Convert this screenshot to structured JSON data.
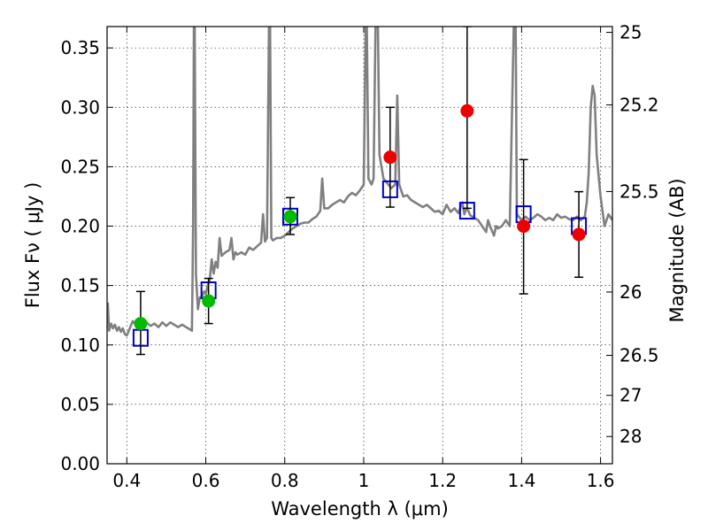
{
  "chart_data": {
    "type": "scatter",
    "title": "",
    "xlabel": "Wavelength  λ (μm)",
    "ylabel": "Flux  Fν  ( μJy )",
    "y2label": "Magnitude (AB)",
    "xlim": [
      0.35,
      1.63
    ],
    "ylim": [
      0.0,
      0.368
    ],
    "grid": true,
    "x_ticks": [
      {
        "v": 0.4,
        "label": "0.4"
      },
      {
        "v": 0.6,
        "label": "0.6"
      },
      {
        "v": 0.8,
        "label": "0.8"
      },
      {
        "v": 1.0,
        "label": "1"
      },
      {
        "v": 1.2,
        "label": "1.2"
      },
      {
        "v": 1.4,
        "label": "1.4"
      },
      {
        "v": 1.6,
        "label": "1.6"
      }
    ],
    "y_ticks": [
      {
        "v": 0.0,
        "label": "0.00"
      },
      {
        "v": 0.05,
        "label": "0.05"
      },
      {
        "v": 0.1,
        "label": "0.10"
      },
      {
        "v": 0.15,
        "label": "0.15"
      },
      {
        "v": 0.2,
        "label": "0.20"
      },
      {
        "v": 0.25,
        "label": "0.25"
      },
      {
        "v": 0.3,
        "label": "0.30"
      },
      {
        "v": 0.35,
        "label": "0.35"
      }
    ],
    "y2_ticks": [
      {
        "v": 25,
        "label": "25"
      },
      {
        "v": 25.2,
        "label": "25.2"
      },
      {
        "v": 25.5,
        "label": "25.5"
      },
      {
        "v": 26,
        "label": "26"
      },
      {
        "v": 26.5,
        "label": "26.5"
      },
      {
        "v": 27,
        "label": "27"
      },
      {
        "v": 28,
        "label": "28"
      }
    ],
    "colors": {
      "model": "#808080",
      "observed_green": "#00bb00",
      "observed_red": "#ee0000",
      "synthetic": "#0000cc",
      "errorbar": "#000000"
    },
    "series": [
      {
        "type": "line",
        "color": "#808080",
        "points": [
          [
            0.35,
            0.12
          ],
          [
            0.352,
            0.135
          ],
          [
            0.355,
            0.112
          ],
          [
            0.36,
            0.118
          ],
          [
            0.365,
            0.114
          ],
          [
            0.37,
            0.117
          ],
          [
            0.375,
            0.112
          ],
          [
            0.38,
            0.115
          ],
          [
            0.385,
            0.111
          ],
          [
            0.39,
            0.114
          ],
          [
            0.395,
            0.109
          ],
          [
            0.4,
            0.108
          ],
          [
            0.405,
            0.112
          ],
          [
            0.41,
            0.116
          ],
          [
            0.415,
            0.12
          ],
          [
            0.42,
            0.118
          ],
          [
            0.43,
            0.121
          ],
          [
            0.44,
            0.118
          ],
          [
            0.45,
            0.119
          ],
          [
            0.46,
            0.116
          ],
          [
            0.47,
            0.118
          ],
          [
            0.48,
            0.115
          ],
          [
            0.49,
            0.119
          ],
          [
            0.5,
            0.116
          ],
          [
            0.51,
            0.119
          ],
          [
            0.52,
            0.117
          ],
          [
            0.53,
            0.115
          ],
          [
            0.54,
            0.117
          ],
          [
            0.55,
            0.115
          ],
          [
            0.56,
            0.113
          ],
          [
            0.565,
            0.112
          ],
          [
            0.568,
            0.2
          ],
          [
            0.57,
            0.368
          ],
          [
            0.572,
            0.368
          ],
          [
            0.575,
            0.16
          ],
          [
            0.58,
            0.13
          ],
          [
            0.585,
            0.14
          ],
          [
            0.59,
            0.14
          ],
          [
            0.595,
            0.145
          ],
          [
            0.6,
            0.143
          ],
          [
            0.605,
            0.15
          ],
          [
            0.61,
            0.155
          ],
          [
            0.615,
            0.172
          ],
          [
            0.62,
            0.16
          ],
          [
            0.625,
            0.17
          ],
          [
            0.63,
            0.165
          ],
          [
            0.635,
            0.19
          ],
          [
            0.64,
            0.175
          ],
          [
            0.65,
            0.178
          ],
          [
            0.66,
            0.18
          ],
          [
            0.665,
            0.19
          ],
          [
            0.67,
            0.172
          ],
          [
            0.675,
            0.178
          ],
          [
            0.68,
            0.176
          ],
          [
            0.69,
            0.178
          ],
          [
            0.7,
            0.176
          ],
          [
            0.71,
            0.182
          ],
          [
            0.72,
            0.18
          ],
          [
            0.73,
            0.183
          ],
          [
            0.74,
            0.186
          ],
          [
            0.745,
            0.21
          ],
          [
            0.75,
            0.187
          ],
          [
            0.755,
            0.19
          ],
          [
            0.76,
            0.368
          ],
          [
            0.763,
            0.368
          ],
          [
            0.766,
            0.19
          ],
          [
            0.77,
            0.188
          ],
          [
            0.78,
            0.19
          ],
          [
            0.79,
            0.19
          ],
          [
            0.8,
            0.192
          ],
          [
            0.81,
            0.195
          ],
          [
            0.82,
            0.198
          ],
          [
            0.83,
            0.2
          ],
          [
            0.84,
            0.202
          ],
          [
            0.85,
            0.203
          ],
          [
            0.86,
            0.203
          ],
          [
            0.87,
            0.206
          ],
          [
            0.88,
            0.208
          ],
          [
            0.89,
            0.213
          ],
          [
            0.895,
            0.24
          ],
          [
            0.9,
            0.215
          ],
          [
            0.91,
            0.215
          ],
          [
            0.92,
            0.218
          ],
          [
            0.93,
            0.22
          ],
          [
            0.94,
            0.222
          ],
          [
            0.95,
            0.22
          ],
          [
            0.96,
            0.225
          ],
          [
            0.97,
            0.228
          ],
          [
            0.98,
            0.226
          ],
          [
            0.99,
            0.23
          ],
          [
            1.0,
            0.235
          ],
          [
            1.005,
            0.368
          ],
          [
            1.008,
            0.368
          ],
          [
            1.012,
            0.24
          ],
          [
            1.02,
            0.235
          ],
          [
            1.025,
            0.24
          ],
          [
            1.03,
            0.368
          ],
          [
            1.033,
            0.368
          ],
          [
            1.036,
            0.368
          ],
          [
            1.04,
            0.26
          ],
          [
            1.05,
            0.24
          ],
          [
            1.06,
            0.236
          ],
          [
            1.07,
            0.232
          ],
          [
            1.08,
            0.235
          ],
          [
            1.085,
            0.31
          ],
          [
            1.09,
            0.235
          ],
          [
            1.1,
            0.225
          ],
          [
            1.11,
            0.226
          ],
          [
            1.12,
            0.222
          ],
          [
            1.13,
            0.22
          ],
          [
            1.14,
            0.218
          ],
          [
            1.15,
            0.216
          ],
          [
            1.16,
            0.218
          ],
          [
            1.17,
            0.215
          ],
          [
            1.18,
            0.212
          ],
          [
            1.19,
            0.213
          ],
          [
            1.2,
            0.21
          ],
          [
            1.21,
            0.218
          ],
          [
            1.22,
            0.212
          ],
          [
            1.23,
            0.215
          ],
          [
            1.24,
            0.211
          ],
          [
            1.25,
            0.22
          ],
          [
            1.255,
            0.21
          ],
          [
            1.26,
            0.215
          ],
          [
            1.265,
            0.213
          ],
          [
            1.27,
            0.209
          ],
          [
            1.28,
            0.207
          ],
          [
            1.29,
            0.205
          ],
          [
            1.3,
            0.2
          ],
          [
            1.31,
            0.195
          ],
          [
            1.315,
            0.205
          ],
          [
            1.32,
            0.2
          ],
          [
            1.33,
            0.192
          ],
          [
            1.335,
            0.2
          ],
          [
            1.34,
            0.198
          ],
          [
            1.35,
            0.2
          ],
          [
            1.36,
            0.205
          ],
          [
            1.37,
            0.2
          ],
          [
            1.38,
            0.368
          ],
          [
            1.385,
            0.368
          ],
          [
            1.388,
            0.21
          ],
          [
            1.4,
            0.205
          ],
          [
            1.41,
            0.208
          ],
          [
            1.42,
            0.205
          ],
          [
            1.43,
            0.207
          ],
          [
            1.44,
            0.21
          ],
          [
            1.45,
            0.208
          ],
          [
            1.46,
            0.205
          ],
          [
            1.47,
            0.207
          ],
          [
            1.48,
            0.205
          ],
          [
            1.49,
            0.21
          ],
          [
            1.5,
            0.207
          ],
          [
            1.51,
            0.208
          ],
          [
            1.52,
            0.206
          ],
          [
            1.53,
            0.205
          ],
          [
            1.54,
            0.208
          ],
          [
            1.55,
            0.205
          ],
          [
            1.56,
            0.208
          ],
          [
            1.565,
            0.22
          ],
          [
            1.57,
            0.245
          ],
          [
            1.575,
            0.3
          ],
          [
            1.58,
            0.318
          ],
          [
            1.585,
            0.31
          ],
          [
            1.59,
            0.26
          ],
          [
            1.6,
            0.225
          ],
          [
            1.61,
            0.2
          ],
          [
            1.62,
            0.21
          ],
          [
            1.63,
            0.205
          ]
        ]
      },
      {
        "type": "scatter",
        "marker": "square-open",
        "color": "#0000cc",
        "points": [
          [
            0.435,
            0.106
          ],
          [
            0.607,
            0.146
          ],
          [
            0.814,
            0.208
          ],
          [
            1.067,
            0.231
          ],
          [
            1.262,
            0.213
          ],
          [
            1.405,
            0.21
          ],
          [
            1.545,
            0.2
          ]
        ]
      },
      {
        "type": "scatter",
        "marker": "circle",
        "color": "#00bb00",
        "points": [
          {
            "x": 0.435,
            "y": 0.118,
            "ylo": 0.092,
            "yhi": 0.145
          },
          {
            "x": 0.607,
            "y": 0.137,
            "ylo": 0.118,
            "yhi": 0.156
          },
          {
            "x": 0.814,
            "y": 0.208,
            "ylo": 0.193,
            "yhi": 0.224
          }
        ]
      },
      {
        "type": "scatter",
        "marker": "circle",
        "color": "#ee0000",
        "points": [
          {
            "x": 1.067,
            "y": 0.258,
            "ylo": 0.216,
            "yhi": 0.3
          },
          {
            "x": 1.262,
            "y": 0.297,
            "ylo": 0.215,
            "yhi": 0.368
          },
          {
            "x": 1.405,
            "y": 0.2,
            "ylo": 0.143,
            "yhi": 0.256
          },
          {
            "x": 1.545,
            "y": 0.193,
            "ylo": 0.157,
            "yhi": 0.229
          }
        ]
      }
    ]
  }
}
